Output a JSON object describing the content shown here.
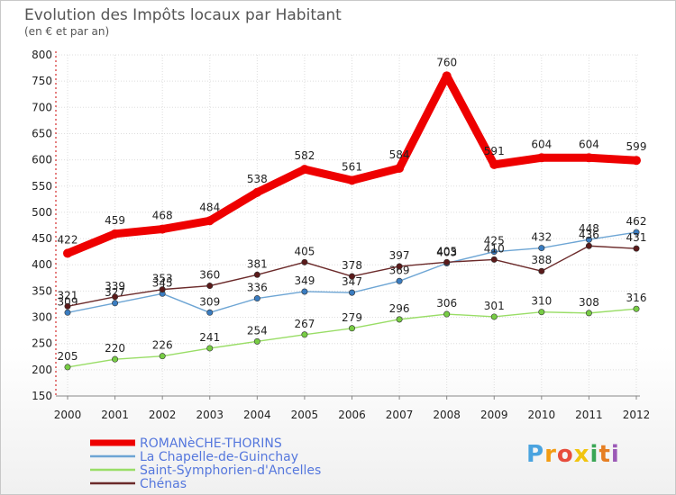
{
  "chart_data": {
    "type": "line",
    "title": "Evolution des Impôts locaux par Habitant",
    "subtitle": "(en € et par an)",
    "xlabel": "",
    "ylabel": "",
    "ylim": [
      150,
      800
    ],
    "yticks": [
      150,
      200,
      250,
      300,
      350,
      400,
      450,
      500,
      550,
      600,
      650,
      700,
      750,
      800
    ],
    "grid": true,
    "legend_position": "bottom-left",
    "categories": [
      "2000",
      "2001",
      "2002",
      "2003",
      "2004",
      "2005",
      "2006",
      "2007",
      "2008",
      "2009",
      "2010",
      "2011",
      "2012"
    ],
    "series": [
      {
        "name": "ROMANèCHE-THORINS",
        "color": "#ee0000",
        "values": [
          422,
          459,
          468,
          484,
          538,
          582,
          561,
          584,
          760,
          591,
          604,
          604,
          599
        ]
      },
      {
        "name": "La Chapelle-de-Guinchay",
        "color": "#6da5d4",
        "marker_color": "#3a7cc0",
        "values": [
          309,
          327,
          345,
          309,
          336,
          349,
          347,
          369,
          403,
          425,
          432,
          448,
          462
        ]
      },
      {
        "name": "Saint-Symphorien-d'Ancelles",
        "color": "#99dd66",
        "marker_color": "#77cc44",
        "values": [
          205,
          220,
          226,
          241,
          254,
          267,
          279,
          296,
          306,
          301,
          310,
          308,
          316
        ]
      },
      {
        "name": "Chénas",
        "color": "#6b2a2a",
        "marker_color": "#5a1a1a",
        "values": [
          321,
          339,
          353,
          360,
          381,
          405,
          378,
          397,
          405,
          410,
          388,
          436,
          431
        ]
      }
    ]
  },
  "logo": {
    "letters": [
      "P",
      "r",
      "o",
      "x",
      "i",
      "t",
      "i"
    ],
    "colors": [
      "#4aa3df",
      "#f39c12",
      "#e74c3c",
      "#f1c40f",
      "#3aa655",
      "#e67e22",
      "#9b59b6"
    ]
  }
}
